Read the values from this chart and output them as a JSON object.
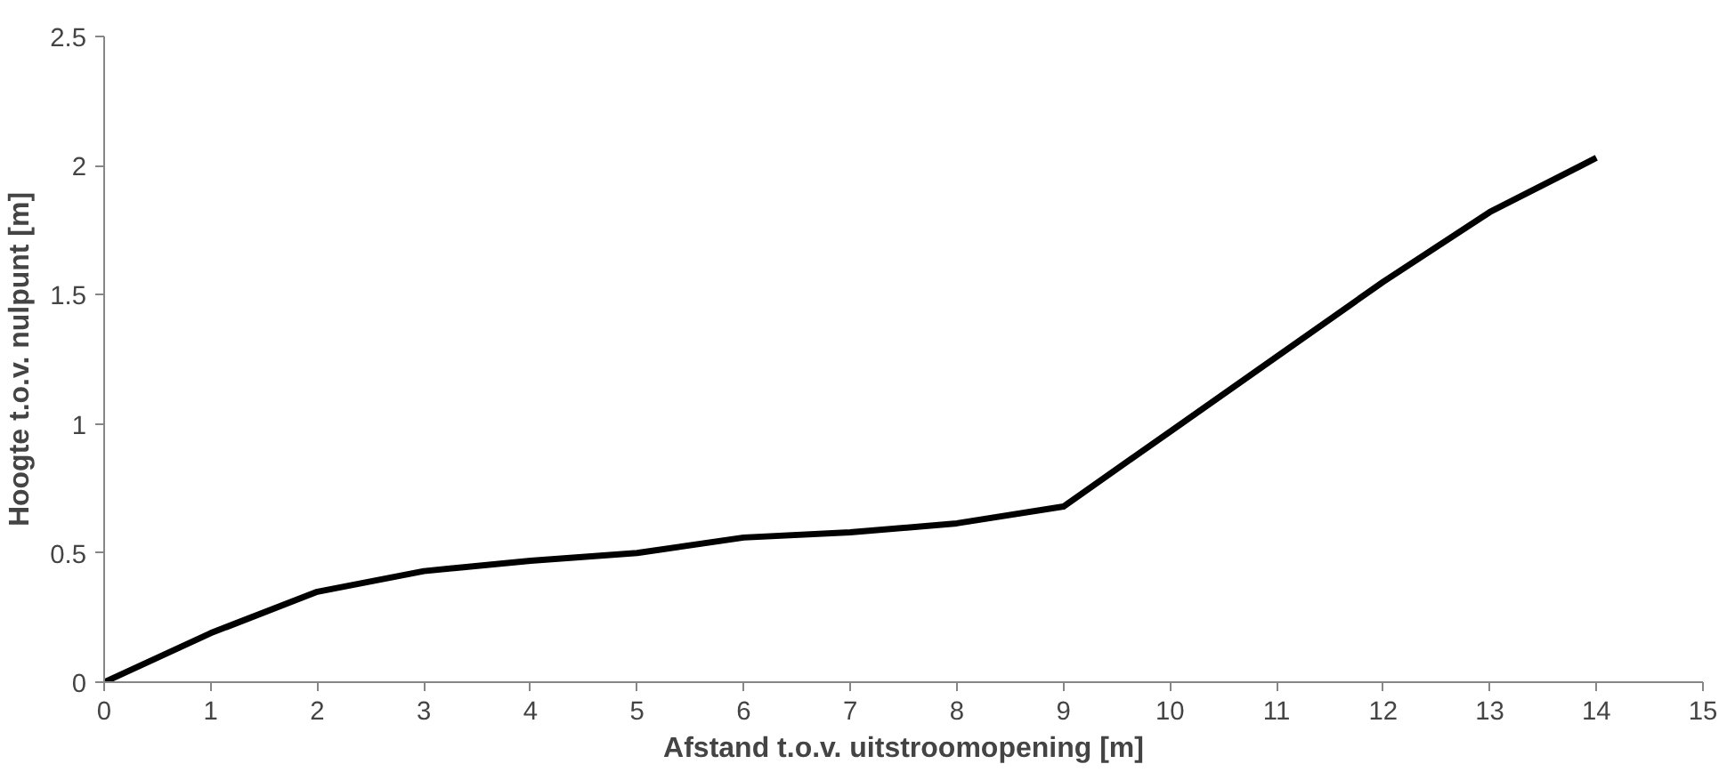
{
  "chart_data": {
    "type": "line",
    "xlabel": "Afstand t.o.v. uitstroomopening [m]",
    "ylabel": "Hoogte t.o.v. nulpunt [m]",
    "x": [
      0,
      1,
      2,
      3,
      4,
      5,
      6,
      7,
      8,
      9,
      10,
      11,
      12,
      13,
      14
    ],
    "series": [
      {
        "color": "#000000",
        "values": [
          0,
          0.19,
          0.35,
          0.43,
          0.47,
          0.5,
          0.56,
          0.58,
          0.615,
          0.68,
          0.97,
          1.26,
          1.55,
          1.82,
          2.03
        ]
      }
    ],
    "xlim": [
      0,
      15
    ],
    "ylim": [
      0,
      2.5
    ],
    "xticks": [
      0,
      1,
      2,
      3,
      4,
      5,
      6,
      7,
      8,
      9,
      10,
      11,
      12,
      13,
      14,
      15
    ],
    "yticks": [
      0,
      0.5,
      1,
      1.5,
      2,
      2.5
    ],
    "grid": false,
    "marker": "none",
    "line_style": "solid"
  }
}
